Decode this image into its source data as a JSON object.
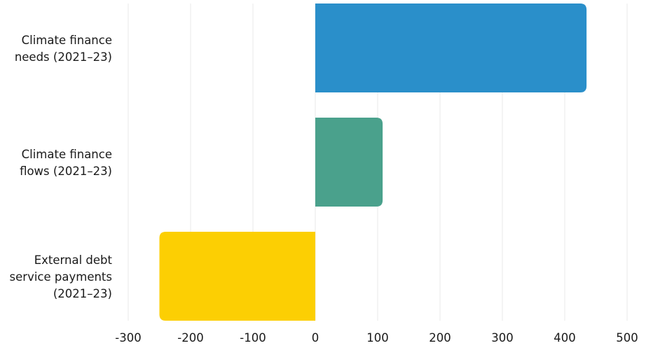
{
  "chart_data": {
    "type": "bar",
    "orientation": "horizontal",
    "categories": [
      "Climate finance\nneeds (2021–23)",
      "Climate finance\nflows (2021–23)",
      "External debt\nservice payments\n(2021–23)"
    ],
    "values": [
      435,
      108,
      -250
    ],
    "colors": [
      "#2a8fca",
      "#4aa18c",
      "#fccf03"
    ],
    "xlim": [
      -300,
      500
    ],
    "xticks": [
      -300,
      -200,
      -100,
      0,
      100,
      200,
      300,
      400,
      500
    ],
    "xtick_labels": [
      "-300",
      "-200",
      "-100",
      "0",
      "100",
      "200",
      "300",
      "400",
      "500"
    ],
    "grid": "vertical",
    "grid_color": "#ececec",
    "title": "",
    "xlabel": "",
    "ylabel": ""
  }
}
